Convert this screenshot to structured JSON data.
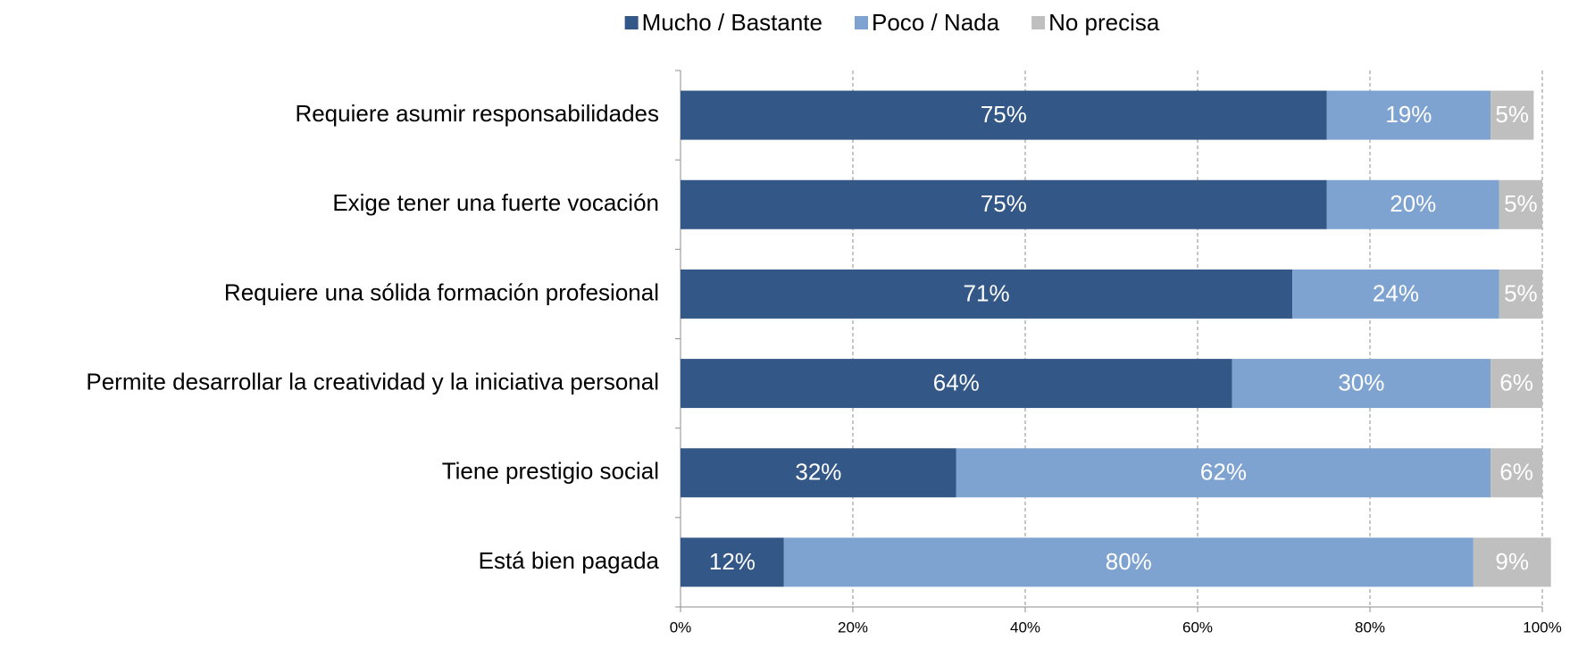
{
  "chart_data": {
    "type": "stacked_barh",
    "categories": [
      "Requiere asumir responsabilidades",
      "Exige tener una fuerte vocación",
      "Requiere una sólida formación profesional",
      "Permite desarrollar la creatividad y la iniciativa personal",
      "Tiene prestigio social",
      "Está bien pagada"
    ],
    "series": [
      {
        "name": "Mucho / Bastante",
        "color": "#335786",
        "values": [
          75,
          75,
          71,
          64,
          32,
          12
        ],
        "value_labels": [
          "75%",
          "75%",
          "71%",
          "64%",
          "32%",
          "12%"
        ]
      },
      {
        "name": "Poco / Nada",
        "color": "#7fa3d0",
        "values": [
          19,
          20,
          24,
          30,
          62,
          80
        ],
        "value_labels": [
          "19%",
          "20%",
          "24%",
          "30%",
          "62%",
          "80%"
        ]
      },
      {
        "name": "No precisa",
        "color": "#bfbfbf",
        "values": [
          5,
          5,
          5,
          6,
          6,
          9
        ],
        "value_labels": [
          "5%",
          "5%",
          "5%",
          "6%",
          "6%",
          "9%"
        ]
      }
    ],
    "xlim": [
      0,
      100
    ],
    "xticks": [
      {
        "value": 0,
        "label": "0%"
      },
      {
        "value": 20,
        "label": "20%"
      },
      {
        "value": 40,
        "label": "40%"
      },
      {
        "value": 60,
        "label": "60%"
      },
      {
        "value": 80,
        "label": "80%"
      },
      {
        "value": 100,
        "label": "100%"
      }
    ],
    "grid": true,
    "legend": "top"
  }
}
